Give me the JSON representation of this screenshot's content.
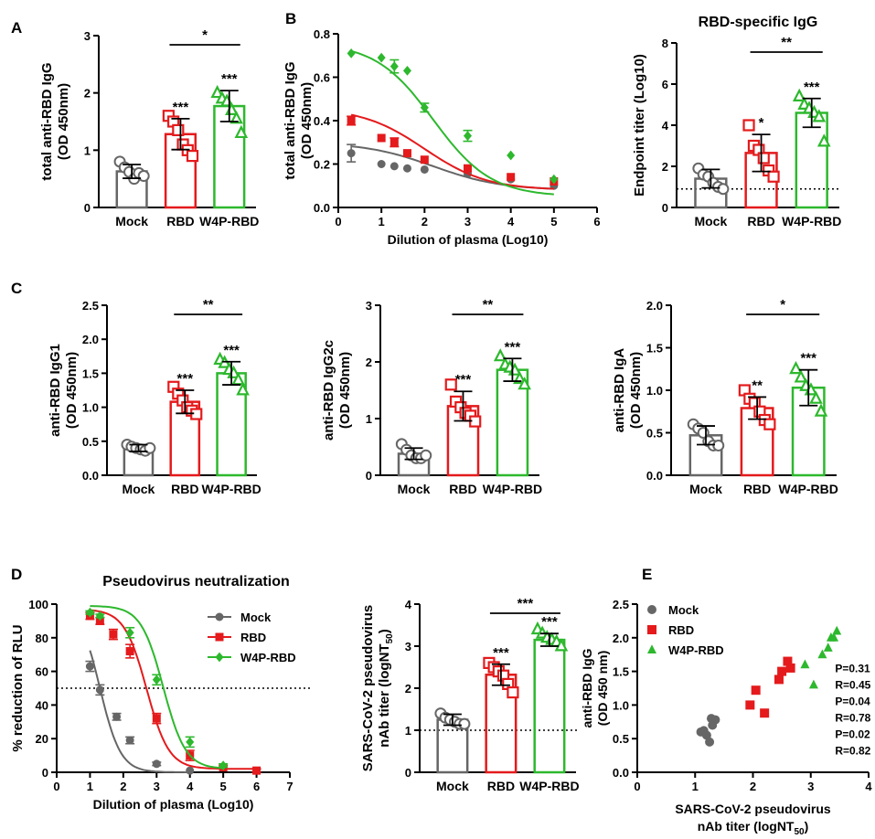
{
  "colors": {
    "mock": "#666666",
    "rbd": "#e41a1c",
    "w4p": "#2db82d",
    "p_gray": "#333333",
    "p_red": "#e41a1c",
    "p_green": "#1a7a1a"
  },
  "groups": [
    "Mock",
    "RBD",
    "W4P-RBD"
  ],
  "chart_data": [
    {
      "id": "A",
      "type": "bar",
      "panel_label": "A",
      "title": "",
      "ylabel_line1": "total anti-RBD IgG",
      "ylabel_line2": "(OD 450nm)",
      "categories": [
        "Mock",
        "RBD",
        "W4P-RBD"
      ],
      "ylim": [
        0,
        3
      ],
      "ticks": [
        0,
        1,
        2,
        3
      ],
      "tick_labels": [
        "0",
        "1",
        "2",
        "3"
      ],
      "values": [
        0.63,
        1.28,
        1.77
      ],
      "sd": [
        0.12,
        0.27,
        0.27
      ],
      "points": [
        [
          0.8,
          0.7,
          0.62,
          0.5,
          0.6,
          0.55
        ],
        [
          1.6,
          1.5,
          1.35,
          1.1,
          1.0,
          0.9
        ],
        [
          2.0,
          1.9,
          1.85,
          1.7,
          1.55,
          1.3
        ]
      ],
      "bar_stars": [
        "",
        "***",
        "***"
      ],
      "brackets": [
        {
          "from": 1,
          "to": 2,
          "label": "*"
        }
      ],
      "dotted_line": null
    },
    {
      "id": "B-right",
      "type": "bar",
      "panel_label": "",
      "title": "RBD-specific IgG",
      "ylabel_line1": "Endpoint titer (Log10)",
      "ylabel_line2": "",
      "categories": [
        "Mock",
        "RBD",
        "W4P-RBD"
      ],
      "ylim": [
        0,
        8
      ],
      "ticks": [
        0,
        2,
        4,
        6,
        8
      ],
      "tick_labels": [
        "0",
        "2",
        "4",
        "6",
        "8"
      ],
      "values": [
        1.4,
        2.65,
        4.6
      ],
      "sd": [
        0.45,
        0.9,
        0.7
      ],
      "points": [
        [
          1.9,
          1.6,
          1.5,
          1.2,
          1.0,
          0.9
        ],
        [
          4.0,
          3.0,
          2.8,
          2.4,
          1.8,
          1.5
        ],
        [
          5.4,
          5.0,
          4.8,
          4.6,
          4.4,
          3.2
        ]
      ],
      "bar_stars": [
        "",
        "*",
        "***"
      ],
      "brackets": [
        {
          "from": 1,
          "to": 2,
          "label": "**"
        }
      ],
      "dotted_line": 0.9
    },
    {
      "id": "C1",
      "type": "bar",
      "panel_label": "C",
      "title": "",
      "ylabel_line1": "anti-RBD IgG1",
      "ylabel_line2": "(OD 450nm)",
      "categories": [
        "Mock",
        "RBD",
        "W4P-RBD"
      ],
      "ylim": [
        0,
        2.5
      ],
      "ticks": [
        0,
        0.5,
        1,
        1.5,
        2,
        2.5
      ],
      "tick_labels": [
        "0.0",
        "0.5",
        "1.0",
        "1.5",
        "2.0",
        "2.5"
      ],
      "values": [
        0.4,
        1.08,
        1.5
      ],
      "sd": [
        0.05,
        0.17,
        0.17
      ],
      "points": [
        [
          0.45,
          0.42,
          0.4,
          0.38,
          0.36,
          0.4
        ],
        [
          1.3,
          1.2,
          1.1,
          1.0,
          0.95,
          0.9
        ],
        [
          1.7,
          1.65,
          1.55,
          1.5,
          1.4,
          1.25
        ]
      ],
      "bar_stars": [
        "",
        "***",
        "***"
      ],
      "brackets": [
        {
          "from": 1,
          "to": 2,
          "label": "**"
        }
      ],
      "dotted_line": null
    },
    {
      "id": "C2",
      "type": "bar",
      "panel_label": "",
      "title": "",
      "ylabel_line1": "anti-RBD IgG2c",
      "ylabel_line2": "(OD 450nm)",
      "categories": [
        "Mock",
        "RBD",
        "W4P-RBD"
      ],
      "ylim": [
        0,
        3
      ],
      "ticks": [
        0,
        1,
        2,
        3
      ],
      "tick_labels": [
        "0",
        "1",
        "2",
        "3"
      ],
      "values": [
        0.38,
        1.22,
        1.86
      ],
      "sd": [
        0.1,
        0.26,
        0.2
      ],
      "points": [
        [
          0.55,
          0.45,
          0.35,
          0.3,
          0.3,
          0.35
        ],
        [
          1.6,
          1.3,
          1.2,
          1.1,
          1.05,
          0.95
        ],
        [
          2.1,
          1.95,
          1.9,
          1.85,
          1.7,
          1.6
        ]
      ],
      "bar_stars": [
        "",
        "***",
        "***"
      ],
      "brackets": [
        {
          "from": 1,
          "to": 2,
          "label": "**"
        }
      ],
      "dotted_line": null
    },
    {
      "id": "C3",
      "type": "bar",
      "panel_label": "",
      "title": "",
      "ylabel_line1": "anti-RBD IgA",
      "ylabel_line2": "(OD 450nm)",
      "categories": [
        "Mock",
        "RBD",
        "W4P-RBD"
      ],
      "ylim": [
        0,
        2
      ],
      "ticks": [
        0,
        0.5,
        1,
        1.5,
        2
      ],
      "tick_labels": [
        "0.0",
        "0.5",
        "1.0",
        "1.5",
        "2.0"
      ],
      "values": [
        0.47,
        0.79,
        1.03
      ],
      "sd": [
        0.11,
        0.13,
        0.21
      ],
      "points": [
        [
          0.6,
          0.55,
          0.5,
          0.4,
          0.35,
          0.35
        ],
        [
          1.0,
          0.9,
          0.85,
          0.75,
          0.65,
          0.6
        ],
        [
          1.25,
          1.15,
          1.05,
          1.0,
          0.9,
          0.75
        ]
      ],
      "bar_stars": [
        "",
        "**",
        "***"
      ],
      "brackets": [
        {
          "from": 1,
          "to": 2,
          "label": "*"
        }
      ],
      "dotted_line": null
    },
    {
      "id": "D-right",
      "type": "bar",
      "panel_label": "",
      "title": "",
      "ylabel_line1": "SARS-CoV-2 pseudovirus",
      "ylabel_line2": "nAb titer (logNT",
      "ylabel_sub": "50",
      "ylabel_close": ")",
      "categories": [
        "Mock",
        "RBD",
        "W4P-RBD"
      ],
      "ylim": [
        0,
        4
      ],
      "ticks": [
        0,
        1,
        2,
        3,
        4
      ],
      "tick_labels": [
        "0",
        "1",
        "2",
        "3",
        "4"
      ],
      "values": [
        1.25,
        2.32,
        3.15
      ],
      "sd": [
        0.13,
        0.25,
        0.15
      ],
      "points": [
        [
          1.4,
          1.3,
          1.25,
          1.2,
          1.15,
          1.15
        ],
        [
          2.6,
          2.5,
          2.4,
          2.3,
          2.1,
          1.9
        ],
        [
          3.4,
          3.3,
          3.2,
          3.15,
          3.1,
          3.0
        ]
      ],
      "bar_stars": [
        "",
        "***",
        "***"
      ],
      "brackets": [
        {
          "from": 1,
          "to": 2,
          "label": "***"
        }
      ],
      "dotted_line": 1.0
    },
    {
      "id": "B-left",
      "type": "line",
      "panel_label": "B",
      "title": "",
      "ylabel_line1": "total anti-RBD IgG",
      "ylabel_line2": "(OD 450nm)",
      "xlabel": "Dilution of plasma (Log10)",
      "xlim": [
        0,
        6
      ],
      "xticks": [
        0,
        1,
        2,
        3,
        4,
        5,
        6
      ],
      "xtick_labels": [
        "0",
        "1",
        "2",
        "3",
        "4",
        "5",
        "6"
      ],
      "ylim": [
        0,
        0.8
      ],
      "yticks": [
        0,
        0.2,
        0.4,
        0.6,
        0.8
      ],
      "ytick_labels": [
        "0.0",
        "0.2",
        "0.4",
        "0.6",
        "0.8"
      ],
      "series": [
        {
          "name": "Mock",
          "color_key": "mock",
          "marker": "circle",
          "x": [
            0.3,
            1.0,
            1.3,
            1.6,
            2.0,
            3.0,
            4.0,
            5.0
          ],
          "y": [
            0.25,
            0.2,
            0.19,
            0.18,
            0.175,
            0.155,
            0.13,
            0.1
          ],
          "err": [
            0.04,
            0,
            0,
            0,
            0,
            0,
            0,
            0
          ],
          "curve": {
            "bottom": 0.08,
            "top": 0.3,
            "ec50": 2.2,
            "hill": 0.55
          }
        },
        {
          "name": "RBD",
          "color_key": "rbd",
          "marker": "square",
          "x": [
            0.3,
            1.0,
            1.3,
            1.6,
            2.0,
            3.0,
            4.0,
            5.0
          ],
          "y": [
            0.4,
            0.32,
            0.3,
            0.25,
            0.22,
            0.18,
            0.14,
            0.12
          ],
          "err": [
            0.02,
            0,
            0.02,
            0,
            0,
            0,
            0,
            0
          ],
          "curve": {
            "bottom": 0.08,
            "top": 0.46,
            "ec50": 2.0,
            "hill": 0.6
          }
        },
        {
          "name": "W4P-RBD",
          "color_key": "w4p",
          "marker": "diamond",
          "x": [
            0.3,
            1.0,
            1.3,
            1.6,
            2.0,
            3.0,
            4.0,
            5.0
          ],
          "y": [
            0.71,
            0.69,
            0.65,
            0.63,
            0.46,
            0.33,
            0.24,
            0.13
          ],
          "err": [
            0,
            0,
            0.03,
            0,
            0.02,
            0.025,
            0,
            0
          ],
          "curve": {
            "bottom": 0.05,
            "top": 0.76,
            "ec50": 2.2,
            "hill": 0.65
          }
        }
      ],
      "legend": null,
      "hline": null
    },
    {
      "id": "D-left",
      "type": "line",
      "panel_label": "D",
      "title": "Pseudovirus neutralization",
      "ylabel_line1": "% reduction of RLU",
      "ylabel_line2": "",
      "xlabel": "Dilution of plasma (Log10)",
      "xlim": [
        0,
        7
      ],
      "xticks": [
        0,
        1,
        2,
        3,
        4,
        5,
        6,
        7
      ],
      "xtick_labels": [
        "0",
        "1",
        "2",
        "3",
        "4",
        "5",
        "6",
        "7"
      ],
      "ylim": [
        0,
        100
      ],
      "yticks": [
        0,
        20,
        40,
        60,
        80,
        100
      ],
      "ytick_labels": [
        "0",
        "20",
        "40",
        "60",
        "80",
        "100"
      ],
      "series": [
        {
          "name": "Mock",
          "color_key": "mock",
          "marker": "circle",
          "x": [
            1.0,
            1.3,
            1.8,
            2.2,
            3.0,
            4.0
          ],
          "y": [
            63,
            49,
            33,
            19,
            5,
            1
          ],
          "err": [
            3,
            3,
            2,
            2,
            1,
            0
          ],
          "curve": {
            "bottom": 0,
            "top": 100,
            "ec50": 1.3,
            "hill": 1.4
          }
        },
        {
          "name": "RBD",
          "color_key": "rbd",
          "marker": "square",
          "x": [
            1.0,
            1.3,
            1.7,
            2.2,
            3.0,
            4.0,
            5.0,
            6.0
          ],
          "y": [
            93,
            90,
            82,
            72,
            32,
            10,
            3,
            1
          ],
          "err": [
            2,
            2,
            3,
            4,
            3,
            3,
            1,
            1
          ],
          "curve": {
            "bottom": 2,
            "top": 97,
            "ec50": 2.7,
            "hill": 1.3
          }
        },
        {
          "name": "W4P-RBD",
          "color_key": "w4p",
          "marker": "diamond",
          "x": [
            1.0,
            1.3,
            2.2,
            3.0,
            4.0,
            5.0
          ],
          "y": [
            95,
            93,
            83,
            55,
            18,
            4
          ],
          "err": [
            1,
            1,
            3,
            3,
            3,
            1
          ],
          "curve": {
            "bottom": 2,
            "top": 99,
            "ec50": 3.2,
            "hill": 1.3
          }
        }
      ],
      "legend": [
        "Mock",
        "RBD",
        "W4P-RBD"
      ],
      "hline": 50
    },
    {
      "id": "E",
      "type": "scatter",
      "panel_label": "E",
      "title": "",
      "ylabel_line1": "anti-RBD IgG",
      "ylabel_line2": "(OD 450 nm)",
      "xlabel_line1": "SARS-CoV-2 pseudovirus",
      "xlabel_line2": "nAb titer (logNT",
      "xlabel_sub": "50",
      "xlabel_close": ")",
      "xlim": [
        0,
        4
      ],
      "xticks": [
        0,
        1,
        2,
        3,
        4
      ],
      "xtick_labels": [
        "0",
        "1",
        "2",
        "3",
        "4"
      ],
      "ylim": [
        0,
        2.5
      ],
      "yticks": [
        0,
        0.5,
        1,
        1.5,
        2,
        2.5
      ],
      "ytick_labels": [
        "0.0",
        "0.5",
        "1.0",
        "1.5",
        "2.0",
        "2.5"
      ],
      "series": [
        {
          "name": "Mock",
          "color_key": "mock",
          "marker": "circle",
          "x": [
            1.1,
            1.2,
            1.3,
            1.35,
            1.25,
            1.15,
            1.28
          ],
          "y": [
            0.6,
            0.55,
            0.7,
            0.78,
            0.45,
            0.62,
            0.8
          ]
        },
        {
          "name": "RBD",
          "color_key": "rbd",
          "marker": "square",
          "x": [
            1.95,
            2.05,
            2.2,
            2.45,
            2.5,
            2.6,
            2.65
          ],
          "y": [
            1.0,
            1.22,
            0.88,
            1.38,
            1.5,
            1.65,
            1.55
          ]
        },
        {
          "name": "W4P-RBD",
          "color_key": "w4p",
          "marker": "triangle",
          "x": [
            2.9,
            3.05,
            3.2,
            3.3,
            3.35,
            3.4,
            3.45
          ],
          "y": [
            1.6,
            1.3,
            1.75,
            1.85,
            2.0,
            2.0,
            2.1
          ]
        }
      ],
      "legend": [
        "Mock",
        "RBD",
        "W4P-RBD"
      ],
      "stats": [
        {
          "text": "P=0.31",
          "color_key": "p_gray"
        },
        {
          "text": "R=0.45",
          "color_key": "p_gray"
        },
        {
          "text": "P=0.04",
          "color_key": "p_red"
        },
        {
          "text": "R=0.78",
          "color_key": "p_red"
        },
        {
          "text": "P=0.02",
          "color_key": "p_green"
        },
        {
          "text": "R=0.82",
          "color_key": "p_green"
        }
      ]
    }
  ]
}
